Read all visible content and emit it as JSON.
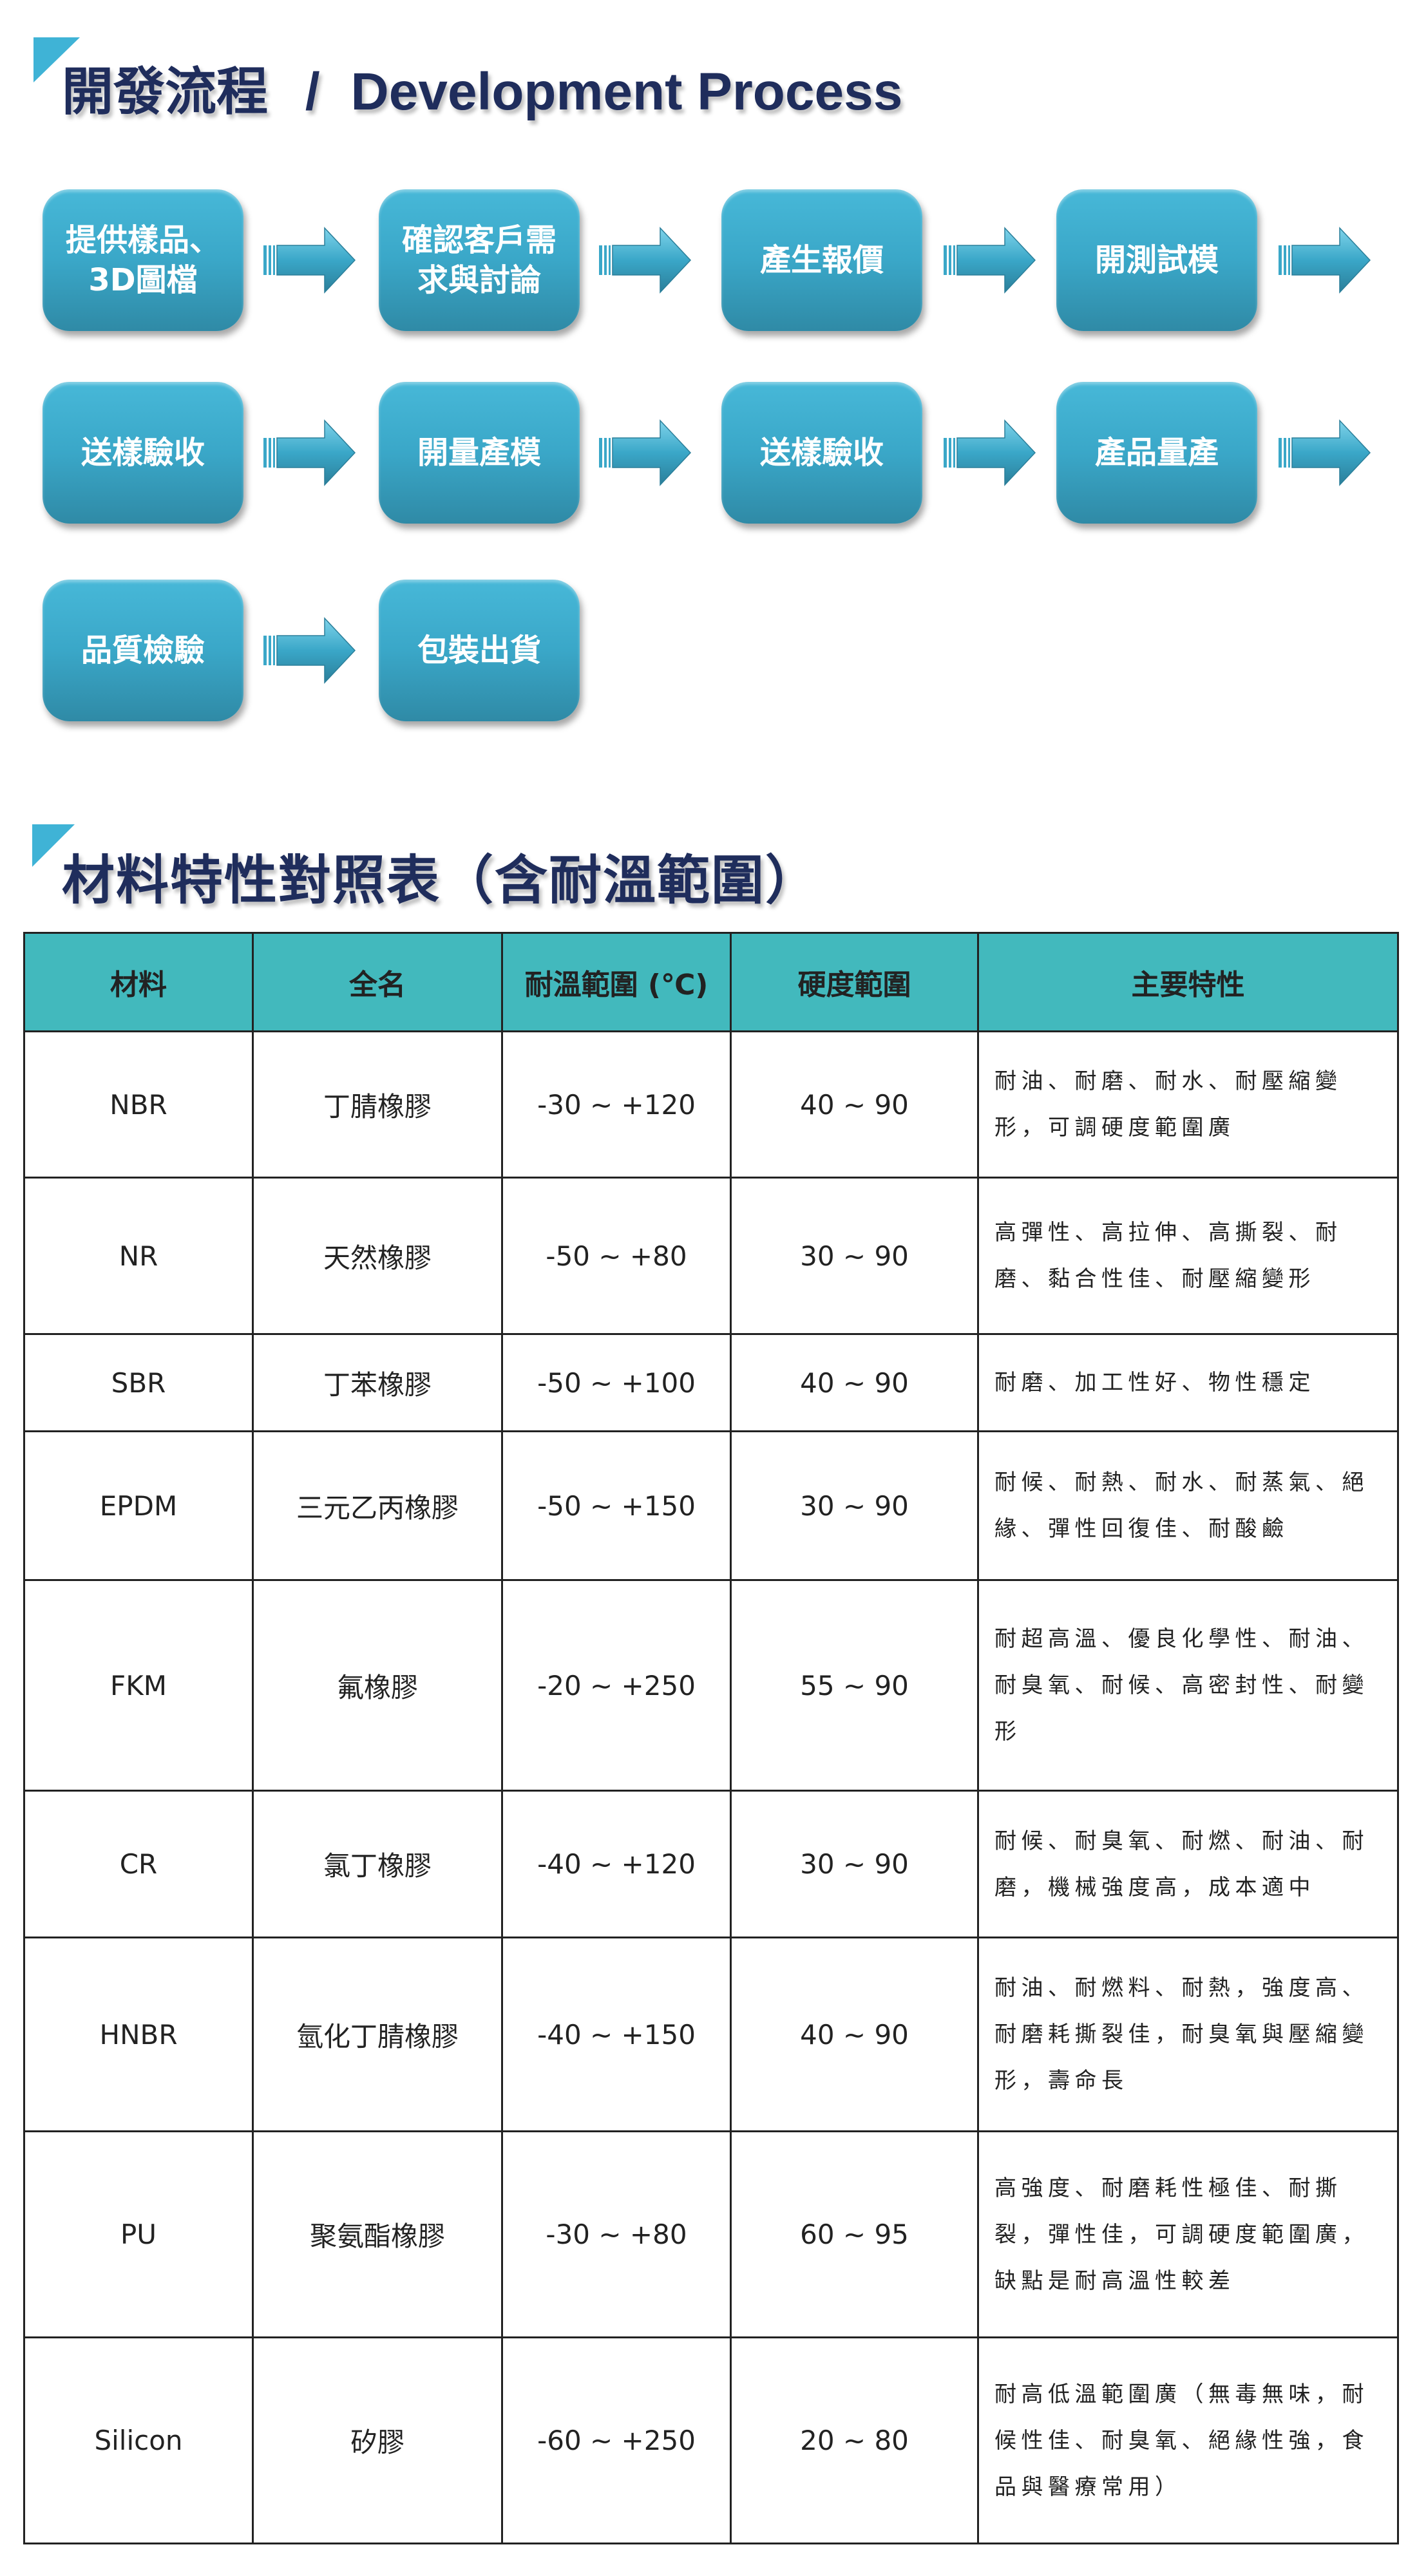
{
  "section1": {
    "title_zh": "開發流程",
    "title_sep": "/",
    "title_en": "Development Process"
  },
  "flow": [
    {
      "label": "提供樣品、3D圖檔",
      "lines": [
        "提供樣品、",
        "3D圖檔"
      ]
    },
    {
      "label": "確認客戶需求與討論",
      "lines": [
        "確認客戶需",
        "求與討論"
      ]
    },
    {
      "label": "產生報價",
      "lines": [
        "產生報價"
      ]
    },
    {
      "label": "開測試模",
      "lines": [
        "開測試模"
      ]
    },
    {
      "label": "送樣驗收",
      "lines": [
        "送樣驗收"
      ]
    },
    {
      "label": "開量產模",
      "lines": [
        "開量產模"
      ]
    },
    {
      "label": "送樣驗收",
      "lines": [
        "送樣驗收"
      ]
    },
    {
      "label": "產品量產",
      "lines": [
        "產品量產"
      ]
    },
    {
      "label": "品質檢驗",
      "lines": [
        "品質檢驗"
      ]
    },
    {
      "label": "包裝出貨",
      "lines": [
        "包裝出貨"
      ]
    }
  ],
  "section2": {
    "title": "材料特性對照表（含耐溫範圍）"
  },
  "table": {
    "headers": [
      "材料",
      "全名",
      "耐溫範圍 (℃)",
      "硬度範圍",
      "主要特性"
    ],
    "rows": [
      [
        "NBR",
        "丁腈橡膠",
        "-30 ~ +120",
        "40 ~ 90",
        "耐油、耐磨、耐水、耐壓縮變形，可調硬度範圍廣"
      ],
      [
        "NR",
        "天然橡膠",
        "-50 ~ +80",
        "30 ~ 90",
        "高彈性、高拉伸、高撕裂、耐磨、黏合性佳、耐壓縮變形"
      ],
      [
        "SBR",
        "丁苯橡膠",
        "-50 ~ +100",
        "40 ~ 90",
        "耐磨、加工性好、物性穩定"
      ],
      [
        "EPDM",
        "三元乙丙橡膠",
        "-50 ~ +150",
        "30 ~ 90",
        "耐候、耐熱、耐水、耐蒸氣、絕緣、彈性回復佳、耐酸鹼"
      ],
      [
        "FKM",
        "氟橡膠",
        "-20 ~ +250",
        "55 ~ 90",
        "耐超高溫、優良化學性、耐油、耐臭氧、耐候、高密封性、耐變形"
      ],
      [
        "CR",
        "氯丁橡膠",
        "-40 ~ +120",
        "30 ~ 90",
        "耐候、耐臭氧、耐燃、耐油、耐磨，機械強度高，成本適中"
      ],
      [
        "HNBR",
        "氫化丁腈橡膠",
        "-40 ~ +150",
        "40 ~ 90",
        "耐油、耐燃料、耐熱，強度高、耐磨耗撕裂佳，耐臭氧與壓縮變形，壽命長"
      ],
      [
        "PU",
        "聚氨酯橡膠",
        "-30 ~ +80",
        "60 ~ 95",
        "高強度、耐磨耗性極佳、耐撕裂，彈性佳，可調硬度範圍廣，缺點是耐高溫性較差"
      ],
      [
        "Silicon",
        "矽膠",
        "-60 ~ +250",
        "20 ~ 80",
        "耐高低溫範圍廣（無毒無味，耐候性佳、耐臭氧、絕緣性強，食品與醫療常用）"
      ]
    ]
  },
  "colors": {
    "title": "#1f2d5c",
    "accent_triangle": "#3fb3d6",
    "box": "#3aa7c8",
    "table_header": "#42b9bd"
  }
}
